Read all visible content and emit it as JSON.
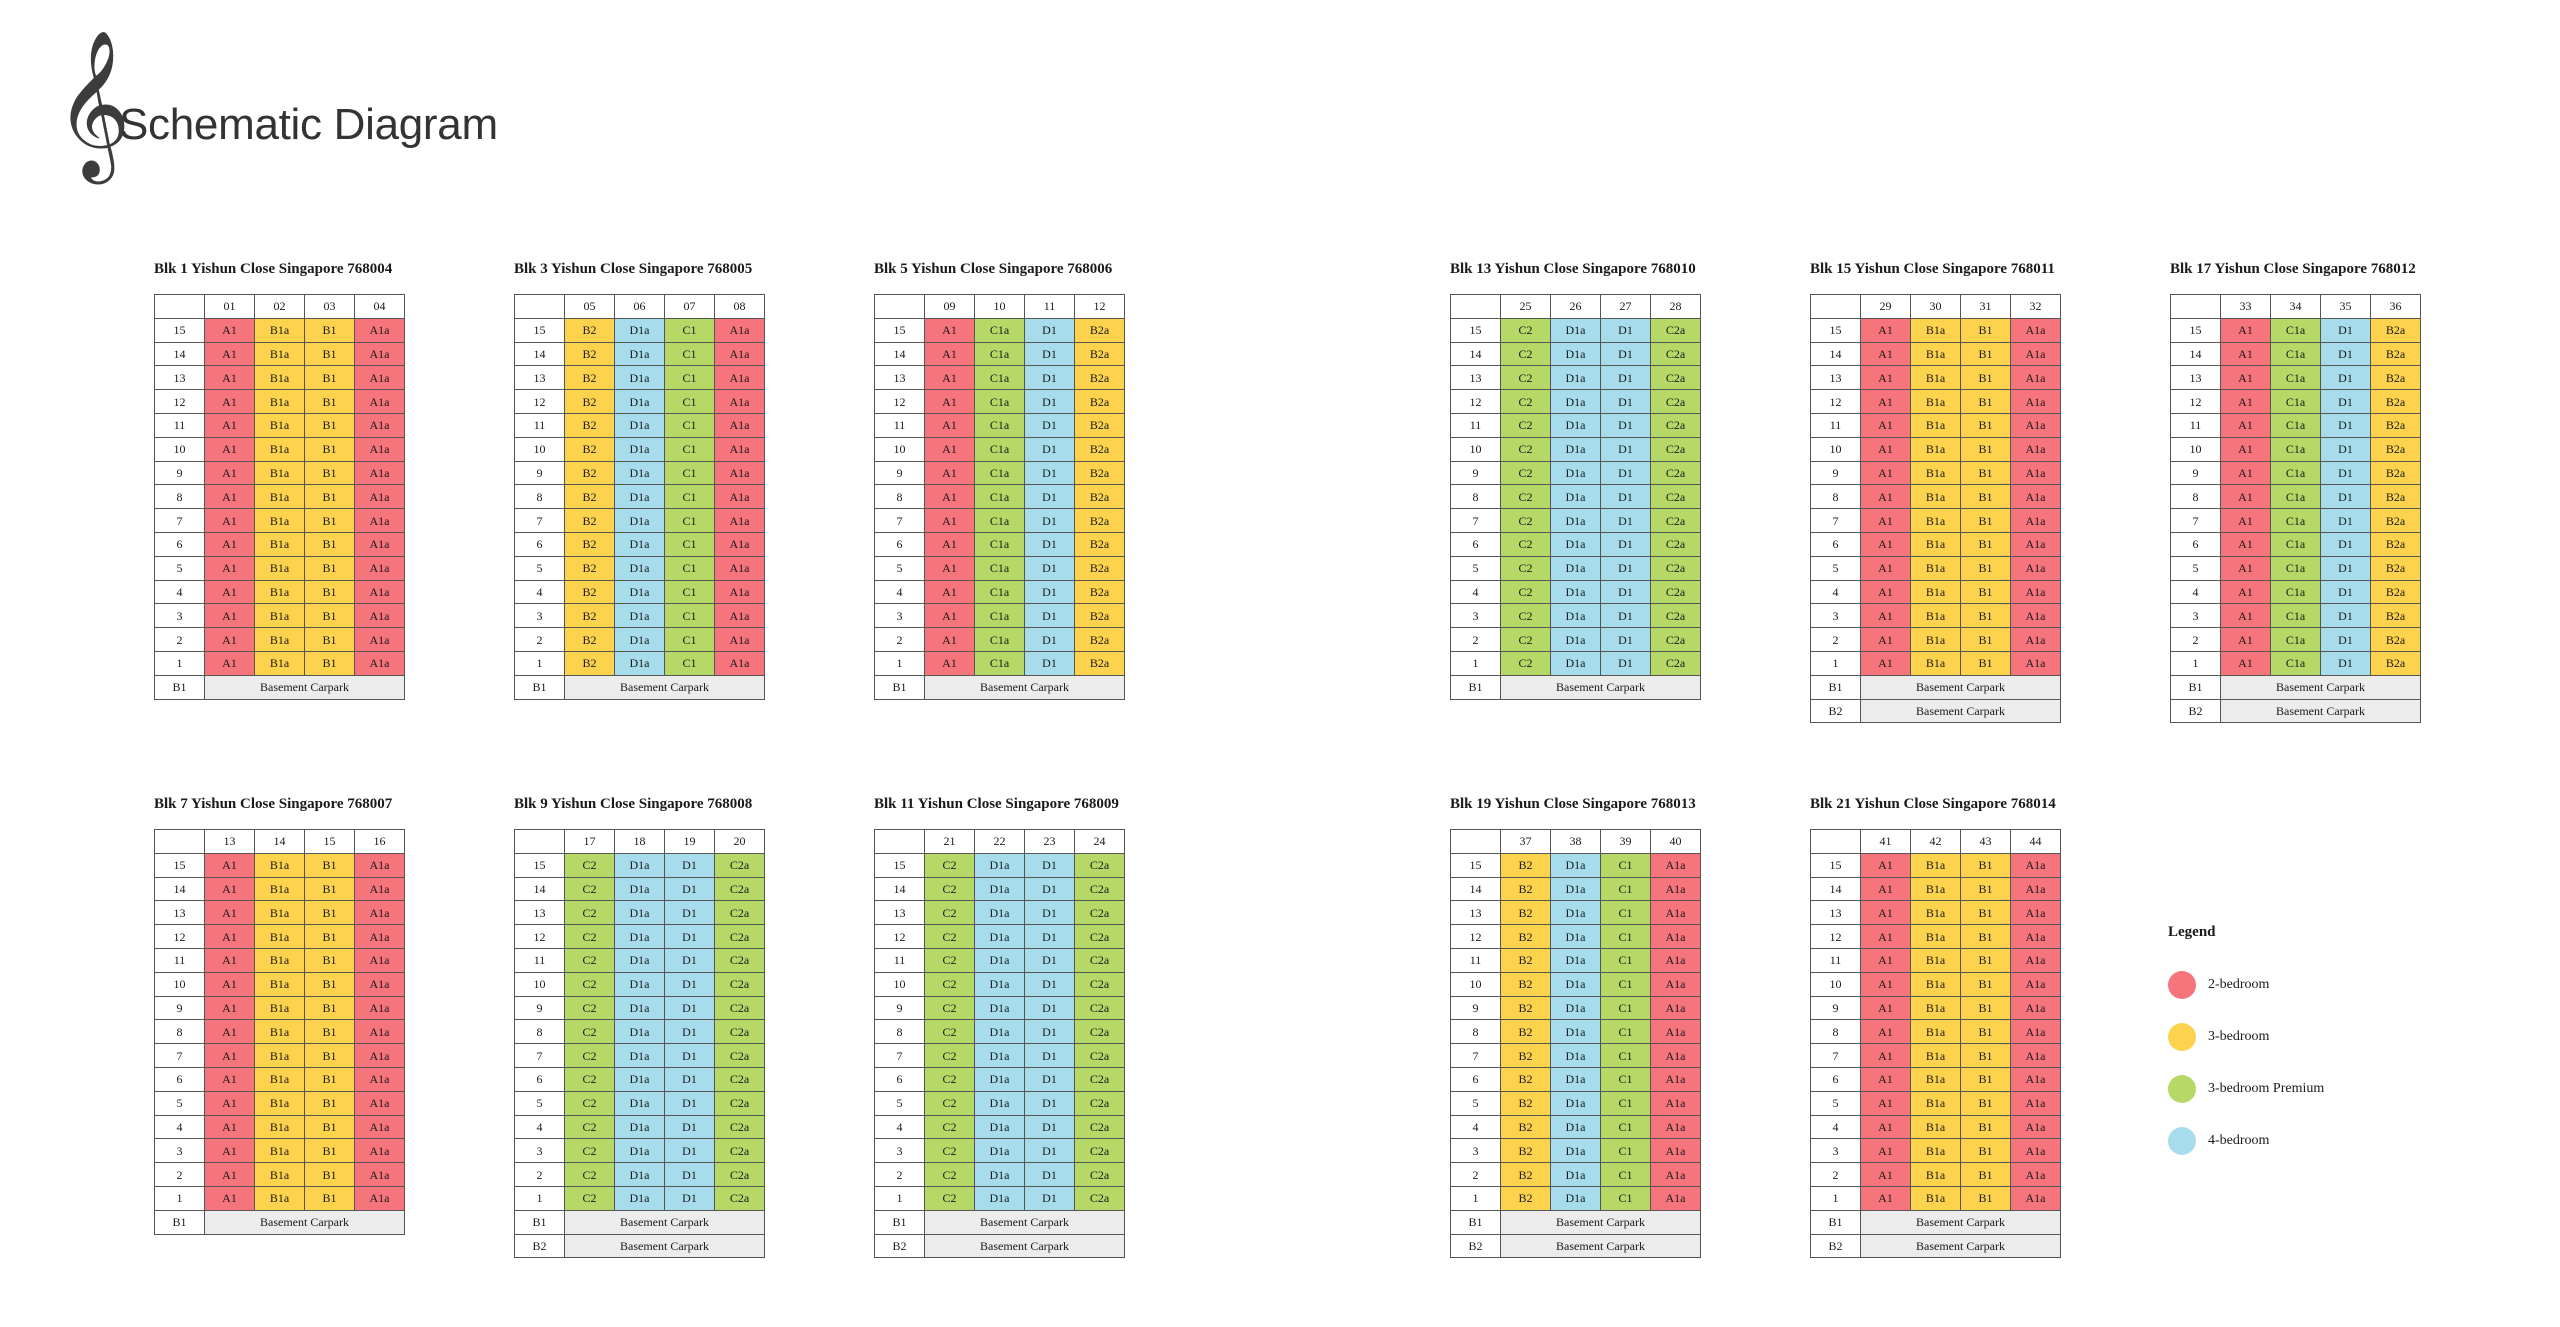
{
  "title": "Schematic Diagram",
  "basement_label": "Basement Carpark",
  "colors": {
    "A1": "#f6747c",
    "A1a": "#f6747c",
    "B1": "#fdd24d",
    "B1a": "#fdd24d",
    "B2": "#fdd24d",
    "B2a": "#fdd24d",
    "C1": "#b5d867",
    "C1a": "#b5d867",
    "C2": "#b5d867",
    "C2a": "#b5d867",
    "D1": "#a7dcec",
    "D1a": "#a7dcec"
  },
  "floors": [
    "15",
    "14",
    "13",
    "12",
    "11",
    "10",
    "9",
    "8",
    "7",
    "6",
    "5",
    "4",
    "3",
    "2",
    "1"
  ],
  "blocks": [
    {
      "title": "Blk 1 Yishun Close Singapore 768004",
      "units": [
        "01",
        "02",
        "03",
        "04"
      ],
      "types": [
        "A1",
        "B1a",
        "B1",
        "A1a"
      ],
      "basements": [
        "B1"
      ]
    },
    {
      "title": "Blk 3 Yishun Close Singapore 768005",
      "units": [
        "05",
        "06",
        "07",
        "08"
      ],
      "types": [
        "B2",
        "D1a",
        "C1",
        "A1a"
      ],
      "basements": [
        "B1"
      ]
    },
    {
      "title": "Blk 5 Yishun Close Singapore 768006",
      "units": [
        "09",
        "10",
        "11",
        "12"
      ],
      "types": [
        "A1",
        "C1a",
        "D1",
        "B2a"
      ],
      "basements": [
        "B1"
      ]
    },
    {
      "title": "Blk 13 Yishun Close Singapore 768010",
      "units": [
        "25",
        "26",
        "27",
        "28"
      ],
      "types": [
        "C2",
        "D1a",
        "D1",
        "C2a"
      ],
      "basements": [
        "B1"
      ]
    },
    {
      "title": "Blk 15 Yishun Close Singapore 768011",
      "units": [
        "29",
        "30",
        "31",
        "32"
      ],
      "types": [
        "A1",
        "B1a",
        "B1",
        "A1a"
      ],
      "basements": [
        "B1",
        "B2"
      ]
    },
    {
      "title": "Blk 17 Yishun Close Singapore 768012",
      "units": [
        "33",
        "34",
        "35",
        "36"
      ],
      "types": [
        "A1",
        "C1a",
        "D1",
        "B2a"
      ],
      "basements": [
        "B1",
        "B2"
      ]
    },
    {
      "title": "Blk 7 Yishun Close Singapore 768007",
      "units": [
        "13",
        "14",
        "15",
        "16"
      ],
      "types": [
        "A1",
        "B1a",
        "B1",
        "A1a"
      ],
      "basements": [
        "B1"
      ]
    },
    {
      "title": "Blk 9 Yishun Close Singapore 768008",
      "units": [
        "17",
        "18",
        "19",
        "20"
      ],
      "types": [
        "C2",
        "D1a",
        "D1",
        "C2a"
      ],
      "basements": [
        "B1",
        "B2"
      ]
    },
    {
      "title": "Blk 11 Yishun Close Singapore 768009",
      "units": [
        "21",
        "22",
        "23",
        "24"
      ],
      "types": [
        "C2",
        "D1a",
        "D1",
        "C2a"
      ],
      "basements": [
        "B1",
        "B2"
      ]
    },
    {
      "title": "Blk 19 Yishun Close Singapore 768013",
      "units": [
        "37",
        "38",
        "39",
        "40"
      ],
      "types": [
        "B2",
        "D1a",
        "C1",
        "A1a"
      ],
      "basements": [
        "B1",
        "B2"
      ]
    },
    {
      "title": "Blk 21 Yishun Close Singapore 768014",
      "units": [
        "41",
        "42",
        "43",
        "44"
      ],
      "types": [
        "A1",
        "B1a",
        "B1",
        "A1a"
      ],
      "basements": [
        "B1",
        "B2"
      ]
    }
  ],
  "legend": {
    "title": "Legend",
    "items": [
      {
        "label": "2-bedroom",
        "color": "#f6747c"
      },
      {
        "label": "3-bedroom",
        "color": "#fdd24d"
      },
      {
        "label": "3-bedroom Premium",
        "color": "#b5d867"
      },
      {
        "label": "4-bedroom",
        "color": "#a7dcec"
      }
    ]
  }
}
